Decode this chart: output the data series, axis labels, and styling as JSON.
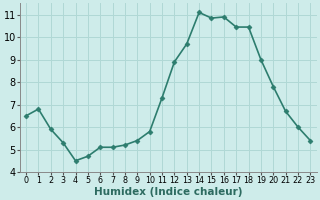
{
  "x": [
    0,
    1,
    2,
    3,
    4,
    5,
    6,
    7,
    8,
    9,
    10,
    11,
    12,
    13,
    14,
    15,
    16,
    17,
    18,
    19,
    20,
    21,
    22,
    23
  ],
  "y": [
    6.5,
    6.8,
    5.9,
    5.3,
    4.5,
    4.7,
    5.1,
    5.1,
    5.2,
    5.4,
    5.8,
    7.3,
    8.9,
    9.7,
    11.1,
    10.85,
    10.9,
    10.45,
    10.45,
    9.0,
    7.8,
    6.7,
    6.0,
    5.4
  ],
  "line_color": "#2d7d6e",
  "marker": "D",
  "markersize": 2.5,
  "linewidth": 1.2,
  "bg_color": "#ceecea",
  "grid_color": "#b0d8d5",
  "xlabel": "Humidex (Indice chaleur)",
  "xlim": [
    -0.5,
    23.5
  ],
  "ylim": [
    4,
    11.5
  ],
  "yticks": [
    4,
    5,
    6,
    7,
    8,
    9,
    10,
    11
  ],
  "xticks": [
    0,
    1,
    2,
    3,
    4,
    5,
    6,
    7,
    8,
    9,
    10,
    11,
    12,
    13,
    14,
    15,
    16,
    17,
    18,
    19,
    20,
    21,
    22,
    23
  ],
  "xlabel_fontsize": 7.5,
  "tick_fontsize": 7,
  "xtick_fontsize": 5.8
}
